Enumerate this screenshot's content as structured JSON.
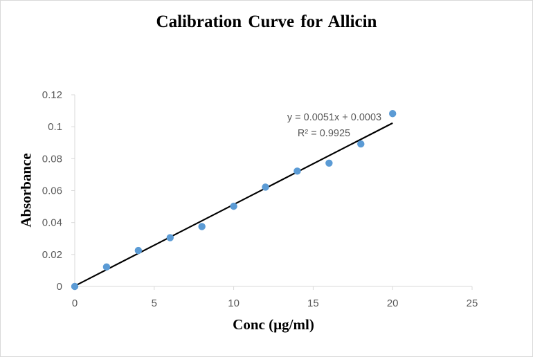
{
  "chart_data": {
    "type": "scatter",
    "title": "Calibration  Curve  for Allicin",
    "xlabel": "Conc (µg/ml)",
    "ylabel": "Absorbance",
    "xlim": [
      0,
      25
    ],
    "ylim": [
      0,
      0.12
    ],
    "x_ticks": [
      "0",
      "5",
      "10",
      "15",
      "20",
      "25"
    ],
    "y_ticks": [
      "0",
      "0.02",
      "0.04",
      "0.06",
      "0.08",
      "0.1",
      "0.12"
    ],
    "grid": false,
    "legend": "none",
    "marker_color": "#5b9bd5",
    "trendline_color": "#000000",
    "points": [
      {
        "x": 0,
        "y": 0
      },
      {
        "x": 2,
        "y": 0.0122
      },
      {
        "x": 4,
        "y": 0.0225
      },
      {
        "x": 6,
        "y": 0.0305
      },
      {
        "x": 8,
        "y": 0.0375
      },
      {
        "x": 10,
        "y": 0.0502
      },
      {
        "x": 12,
        "y": 0.0622
      },
      {
        "x": 14,
        "y": 0.0722
      },
      {
        "x": 16,
        "y": 0.0772
      },
      {
        "x": 18,
        "y": 0.0892
      },
      {
        "x": 20,
        "y": 0.1082
      }
    ],
    "trendline": {
      "slope": 0.0051,
      "intercept": 0.0003,
      "x_range": [
        0,
        20
      ],
      "equation": "y = 0.0051x + 0.0003",
      "r_squared": "R² = 0.9925"
    }
  }
}
